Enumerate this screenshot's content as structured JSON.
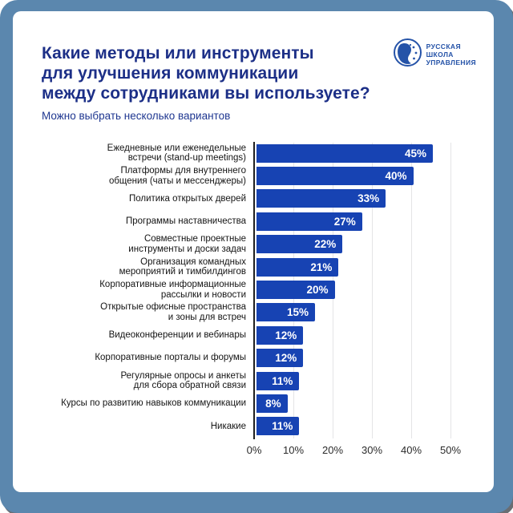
{
  "frame": {
    "border_color": "#5b87ae"
  },
  "header": {
    "title_lines": [
      "Какие методы или инструменты",
      "для улучшения коммуникации",
      "между сотрудниками вы используете?"
    ],
    "subtitle": "Можно выбрать несколько вариантов",
    "logo": {
      "lines": [
        "РУССКАЯ",
        "ШКОЛА",
        "УПРАВЛЕНИЯ"
      ],
      "color": "#2553a8"
    }
  },
  "chart_data": {
    "type": "bar",
    "orientation": "horizontal",
    "title": "Какие методы или инструменты для улучшения коммуникации между сотрудниками вы используете?",
    "subtitle": "Можно выбрать несколько вариантов",
    "categories": [
      "Ежедневные или еженедельные\nвстречи (stand-up meetings)",
      "Платформы для внутреннего\nобщения (чаты и мессенджеры)",
      "Политика открытых дверей",
      "Программы наставничества",
      "Совместные проектные\nинструменты и доски задач",
      "Организация командных\nмероприятий и тимбилдингов",
      "Корпоративные информационные\nрассылки и новости",
      "Открытые офисные пространства\nи зоны для встреч",
      "Видеоконференции и вебинары",
      "Корпоративные порталы и форумы",
      "Регулярные опросы и анкеты\nдля сбора обратной связи",
      "Курсы по развитию навыков коммуникации",
      "Никакие"
    ],
    "values": [
      45,
      40,
      33,
      27,
      22,
      21,
      20,
      15,
      12,
      12,
      11,
      8,
      11
    ],
    "value_labels": [
      "45%",
      "40%",
      "33%",
      "27%",
      "22%",
      "21%",
      "20%",
      "15%",
      "12%",
      "12%",
      "11%",
      "8%",
      "11%"
    ],
    "x_ticks": [
      "0%",
      "10%",
      "20%",
      "30%",
      "40%",
      "50%"
    ],
    "xlim": [
      0,
      50
    ],
    "grid": true,
    "bar_color": "#1743b3",
    "value_label_position": "inside-end"
  }
}
